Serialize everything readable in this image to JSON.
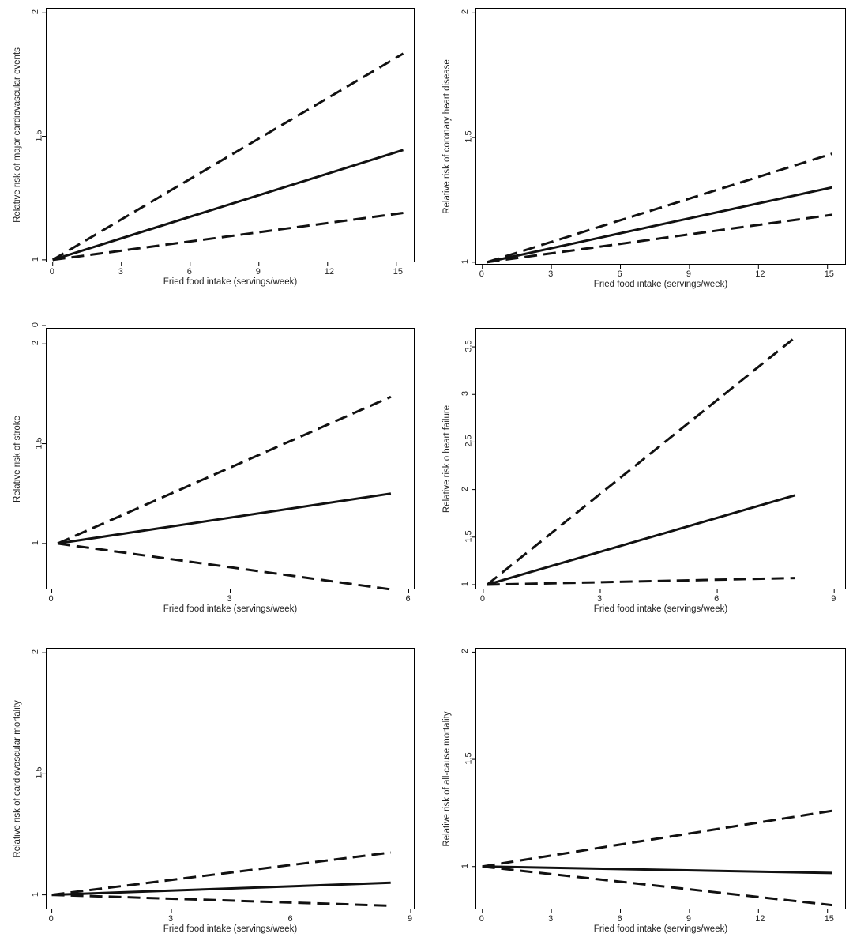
{
  "chart_data": [
    {
      "type": "line",
      "xlabel": "Fried food intake (servings/week)",
      "ylabel": "Relative risk of major cardiovascular events",
      "xlim": [
        -0.3,
        15.8
      ],
      "ylim": [
        0.99,
        2.02
      ],
      "xticks": [
        0,
        3,
        6,
        9,
        12,
        15
      ],
      "yticks": [
        1,
        1.5,
        2
      ],
      "series": [
        {
          "style": "dashed",
          "x": [
            0,
            15.3
          ],
          "y": [
            1.0,
            1.835
          ]
        },
        {
          "style": "solid",
          "x": [
            0,
            15.3
          ],
          "y": [
            1.0,
            1.445
          ]
        },
        {
          "style": "dashed",
          "x": [
            0,
            15.3
          ],
          "y": [
            1.0,
            1.19
          ]
        }
      ]
    },
    {
      "type": "line",
      "xlabel": "Fried food intake (servings/week)",
      "ylabel": "Relative risk of coronary heart disease",
      "xlim": [
        -0.3,
        15.8
      ],
      "ylim": [
        0.99,
        2.02
      ],
      "xticks": [
        0,
        3,
        6,
        9,
        12,
        15
      ],
      "yticks": [
        1,
        1.5,
        2
      ],
      "series": [
        {
          "style": "dashed",
          "x": [
            0.2,
            15.2
          ],
          "y": [
            1.0,
            1.435
          ]
        },
        {
          "style": "solid",
          "x": [
            0.2,
            15.2
          ],
          "y": [
            1.0,
            1.3
          ]
        },
        {
          "style": "dashed",
          "x": [
            0.2,
            15.2
          ],
          "y": [
            1.0,
            1.19
          ]
        }
      ]
    },
    {
      "type": "line",
      "xlabel": "Fried food intake (servings/week)",
      "ylabel": "Relative risk of stroke",
      "xlim": [
        -0.1,
        6.1
      ],
      "ylim": [
        0.77,
        2.08
      ],
      "xticks": [
        0,
        3,
        6
      ],
      "yticks": [
        1,
        1.5,
        2
      ],
      "extra_tick_label": "0",
      "series": [
        {
          "style": "dashed",
          "x": [
            0.1,
            5.7
          ],
          "y": [
            1.0,
            1.735
          ]
        },
        {
          "style": "solid",
          "x": [
            0.1,
            5.7
          ],
          "y": [
            1.0,
            1.25
          ]
        },
        {
          "style": "dashed",
          "x": [
            0.1,
            5.7
          ],
          "y": [
            1.0,
            0.77
          ]
        }
      ]
    },
    {
      "type": "line",
      "xlabel": "Fried food intake (servings/week)",
      "ylabel": "Relative risk o heart failure",
      "xlim": [
        -0.2,
        9.3
      ],
      "ylim": [
        0.95,
        3.7
      ],
      "xticks": [
        0,
        3,
        6,
        9
      ],
      "yticks": [
        1,
        1.5,
        2,
        2.5,
        3,
        3.5
      ],
      "series": [
        {
          "style": "dashed",
          "x": [
            0.1,
            8.0
          ],
          "y": [
            1.0,
            3.6
          ]
        },
        {
          "style": "solid",
          "x": [
            0.1,
            8.0
          ],
          "y": [
            1.0,
            1.94
          ]
        },
        {
          "style": "dashed",
          "x": [
            0.1,
            8.0
          ],
          "y": [
            1.0,
            1.07
          ]
        }
      ]
    },
    {
      "type": "line",
      "xlabel": "Fried food intake (servings/week)",
      "ylabel": "Relative risk of cardiovascular mortality",
      "xlim": [
        -0.15,
        9.1
      ],
      "ylim": [
        0.94,
        2.02
      ],
      "xticks": [
        0,
        3,
        6,
        9
      ],
      "yticks": [
        1,
        1.5,
        2
      ],
      "series": [
        {
          "style": "dashed",
          "x": [
            0,
            8.5
          ],
          "y": [
            1.0,
            1.175
          ]
        },
        {
          "style": "solid",
          "x": [
            0,
            8.5
          ],
          "y": [
            1.0,
            1.05
          ]
        },
        {
          "style": "dashed",
          "x": [
            0,
            8.5
          ],
          "y": [
            1.0,
            0.955
          ]
        }
      ]
    },
    {
      "type": "line",
      "xlabel": "Fried food intake (servings/week)",
      "ylabel": "Relative risk of all-cause mortality",
      "xlim": [
        -0.3,
        15.8
      ],
      "ylim": [
        0.8,
        2.02
      ],
      "xticks": [
        0,
        3,
        6,
        9,
        12,
        15
      ],
      "yticks": [
        1,
        1.5,
        2
      ],
      "series": [
        {
          "style": "dashed",
          "x": [
            0,
            15.2
          ],
          "y": [
            1.0,
            1.26
          ]
        },
        {
          "style": "solid",
          "x": [
            0,
            15.2
          ],
          "y": [
            1.0,
            0.97
          ]
        },
        {
          "style": "dashed",
          "x": [
            0,
            15.2
          ],
          "y": [
            1.0,
            0.82
          ]
        }
      ]
    }
  ]
}
